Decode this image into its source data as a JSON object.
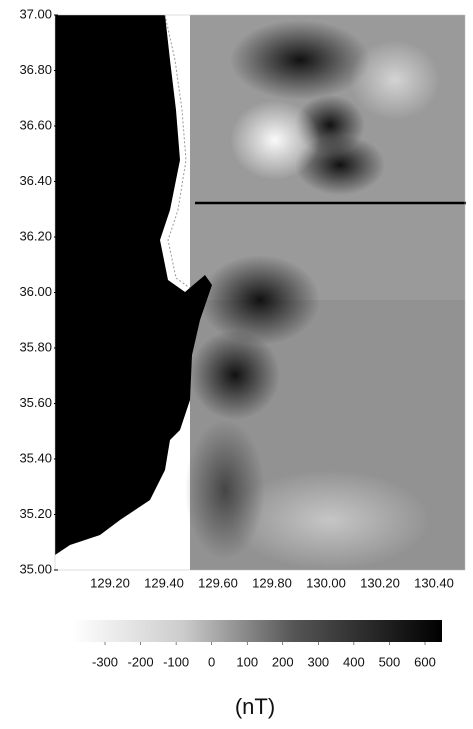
{
  "map": {
    "xlim": [
      129.0,
      130.5
    ],
    "ylim": [
      35.0,
      37.0
    ],
    "xticks": [
      {
        "value": 129.2,
        "label": "129.20"
      },
      {
        "value": 129.4,
        "label": "129.40"
      },
      {
        "value": 129.6,
        "label": "129.60"
      },
      {
        "value": 129.8,
        "label": "129.80"
      },
      {
        "value": 130.0,
        "label": "130.00"
      },
      {
        "value": 130.2,
        "label": "130.20"
      },
      {
        "value": 130.4,
        "label": "130.40"
      }
    ],
    "yticks": [
      {
        "value": 37.0,
        "label": "37.00"
      },
      {
        "value": 36.8,
        "label": "36.80"
      },
      {
        "value": 36.6,
        "label": "36.60"
      },
      {
        "value": 36.4,
        "label": "36.40"
      },
      {
        "value": 36.2,
        "label": "36.20"
      },
      {
        "value": 36.0,
        "label": "36.00"
      },
      {
        "value": 35.8,
        "label": "35.80"
      },
      {
        "value": 35.6,
        "label": "35.60"
      },
      {
        "value": 35.4,
        "label": "35.40"
      },
      {
        "value": 35.2,
        "label": "35.20"
      },
      {
        "value": 35.0,
        "label": "35.00"
      }
    ]
  },
  "colorbar": {
    "lim": [
      -300,
      600
    ],
    "ticks": [
      -300,
      -200,
      -100,
      0,
      100,
      200,
      300,
      400,
      500,
      600
    ],
    "unit": "(nT)"
  }
}
